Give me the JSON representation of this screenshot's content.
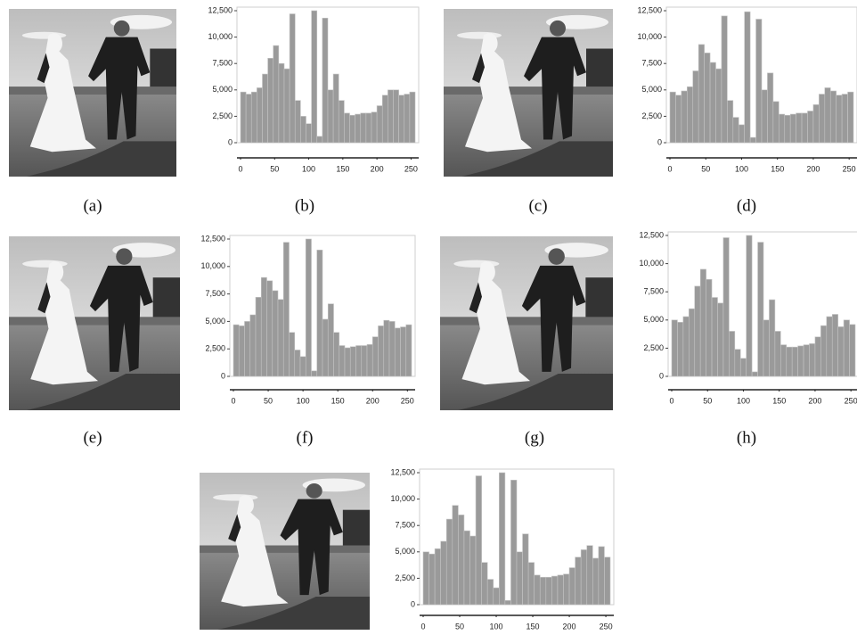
{
  "captions": [
    "(a)",
    "(b)",
    "(c)",
    "(d)",
    "(e)",
    "(f)",
    "(g)",
    "(h)"
  ],
  "chart_data": [
    {
      "type": "histogram",
      "bins": [
        0,
        8,
        16,
        24,
        32,
        40,
        48,
        56,
        64,
        72,
        80,
        88,
        96,
        104,
        112,
        120,
        128,
        136,
        144,
        152,
        160,
        168,
        176,
        184,
        192,
        200,
        208,
        216,
        224,
        232,
        240,
        248,
        256
      ],
      "values": [
        4800,
        4600,
        4800,
        5200,
        6500,
        8000,
        9200,
        7500,
        7000,
        12200,
        4000,
        2500,
        1800,
        12500,
        600,
        11800,
        5000,
        6500,
        4000,
        2800,
        2600,
        2700,
        2800,
        2800,
        2900,
        3500,
        4500,
        5000,
        5000,
        4500,
        4600,
        4800
      ],
      "color": "#9a9a9a",
      "xlim": [
        0,
        256
      ],
      "xticks": [
        0,
        50,
        100,
        150,
        200,
        250
      ],
      "ylim": [
        0,
        12500
      ],
      "yticks": [
        0,
        {
          "value": 2500,
          "label": "2,500"
        },
        {
          "value": 5000,
          "label": "5,000"
        },
        {
          "value": 7500,
          "label": "7,500"
        },
        {
          "value": 10000,
          "label": "10,000"
        },
        {
          "value": 12500,
          "label": "12,500"
        }
      ]
    },
    {
      "type": "histogram",
      "bins": [
        0,
        8,
        16,
        24,
        32,
        40,
        48,
        56,
        64,
        72,
        80,
        88,
        96,
        104,
        112,
        120,
        128,
        136,
        144,
        152,
        160,
        168,
        176,
        184,
        192,
        200,
        208,
        216,
        224,
        232,
        240,
        248,
        256
      ],
      "values": [
        4800,
        4500,
        4900,
        5300,
        6800,
        9300,
        8500,
        7600,
        7000,
        12000,
        4000,
        2400,
        1700,
        12400,
        500,
        11700,
        5000,
        6600,
        3900,
        2700,
        2600,
        2700,
        2800,
        2800,
        3000,
        3600,
        4600,
        5200,
        4900,
        4500,
        4600,
        4800
      ],
      "color": "#9a9a9a",
      "xlim": [
        0,
        256
      ],
      "xticks": [
        0,
        50,
        100,
        150,
        200,
        250
      ],
      "ylim": [
        0,
        12500
      ],
      "yticks": [
        0,
        {
          "value": 2500,
          "label": "2,500"
        },
        {
          "value": 5000,
          "label": "5,000"
        },
        {
          "value": 7500,
          "label": "7,500"
        },
        {
          "value": 10000,
          "label": "10,000"
        },
        {
          "value": 12500,
          "label": "12,500"
        }
      ]
    },
    {
      "type": "histogram",
      "bins": [
        0,
        8,
        16,
        24,
        32,
        40,
        48,
        56,
        64,
        72,
        80,
        88,
        96,
        104,
        112,
        120,
        128,
        136,
        144,
        152,
        160,
        168,
        176,
        184,
        192,
        200,
        208,
        216,
        224,
        232,
        240,
        248,
        256
      ],
      "values": [
        4700,
        4600,
        5000,
        5600,
        7200,
        9000,
        8700,
        7800,
        7000,
        12200,
        4000,
        2400,
        1800,
        12500,
        500,
        11500,
        5200,
        6600,
        4000,
        2800,
        2600,
        2700,
        2800,
        2800,
        2900,
        3600,
        4600,
        5100,
        5000,
        4400,
        4500,
        4700
      ],
      "color": "#9a9a9a",
      "xlim": [
        0,
        256
      ],
      "xticks": [
        0,
        50,
        100,
        150,
        200,
        250
      ],
      "ylim": [
        0,
        12500
      ],
      "yticks": [
        0,
        {
          "value": 2500,
          "label": "2,500"
        },
        {
          "value": 5000,
          "label": "5,000"
        },
        {
          "value": 7500,
          "label": "7,500"
        },
        {
          "value": 10000,
          "label": "10,000"
        },
        {
          "value": 12500,
          "label": "12,500"
        }
      ]
    },
    {
      "type": "histogram",
      "bins": [
        0,
        8,
        16,
        24,
        32,
        40,
        48,
        56,
        64,
        72,
        80,
        88,
        96,
        104,
        112,
        120,
        128,
        136,
        144,
        152,
        160,
        168,
        176,
        184,
        192,
        200,
        208,
        216,
        224,
        232,
        240,
        248,
        256
      ],
      "values": [
        5000,
        4800,
        5300,
        6000,
        8000,
        9500,
        8600,
        7000,
        6500,
        12300,
        4000,
        2400,
        1600,
        12500,
        400,
        11900,
        5000,
        6800,
        4000,
        2800,
        2600,
        2600,
        2700,
        2800,
        2900,
        3500,
        4500,
        5300,
        5500,
        4400,
        5000,
        4600
      ],
      "color": "#9a9a9a",
      "xlim": [
        0,
        256
      ],
      "xticks": [
        0,
        50,
        100,
        150,
        200,
        250
      ],
      "ylim": [
        0,
        12500
      ],
      "yticks": [
        0,
        {
          "value": 2500,
          "label": "2,500"
        },
        {
          "value": 5000,
          "label": "5,000"
        },
        {
          "value": 7500,
          "label": "7,500"
        },
        {
          "value": 10000,
          "label": "10,000"
        },
        {
          "value": 12500,
          "label": "12,500"
        }
      ]
    },
    {
      "type": "histogram",
      "bins": [
        0,
        8,
        16,
        24,
        32,
        40,
        48,
        56,
        64,
        72,
        80,
        88,
        96,
        104,
        112,
        120,
        128,
        136,
        144,
        152,
        160,
        168,
        176,
        184,
        192,
        200,
        208,
        216,
        224,
        232,
        240,
        248,
        256
      ],
      "values": [
        5000,
        4800,
        5300,
        6000,
        8100,
        9400,
        8500,
        7000,
        6500,
        12200,
        4000,
        2400,
        1600,
        12500,
        400,
        11800,
        5000,
        6700,
        4000,
        2800,
        2600,
        2600,
        2700,
        2800,
        2900,
        3500,
        4500,
        5200,
        5600,
        4400,
        5500,
        4500
      ],
      "color": "#9a9a9a",
      "xlim": [
        0,
        256
      ],
      "xticks": [
        0,
        50,
        100,
        150,
        200,
        250
      ],
      "ylim": [
        0,
        12500
      ],
      "yticks": [
        0,
        {
          "value": 2500,
          "label": "2,500"
        },
        {
          "value": 5000,
          "label": "5,000"
        },
        {
          "value": 7500,
          "label": "7,500"
        },
        {
          "value": 10000,
          "label": "10,000"
        },
        {
          "value": 12500,
          "label": "12,500"
        }
      ]
    }
  ]
}
